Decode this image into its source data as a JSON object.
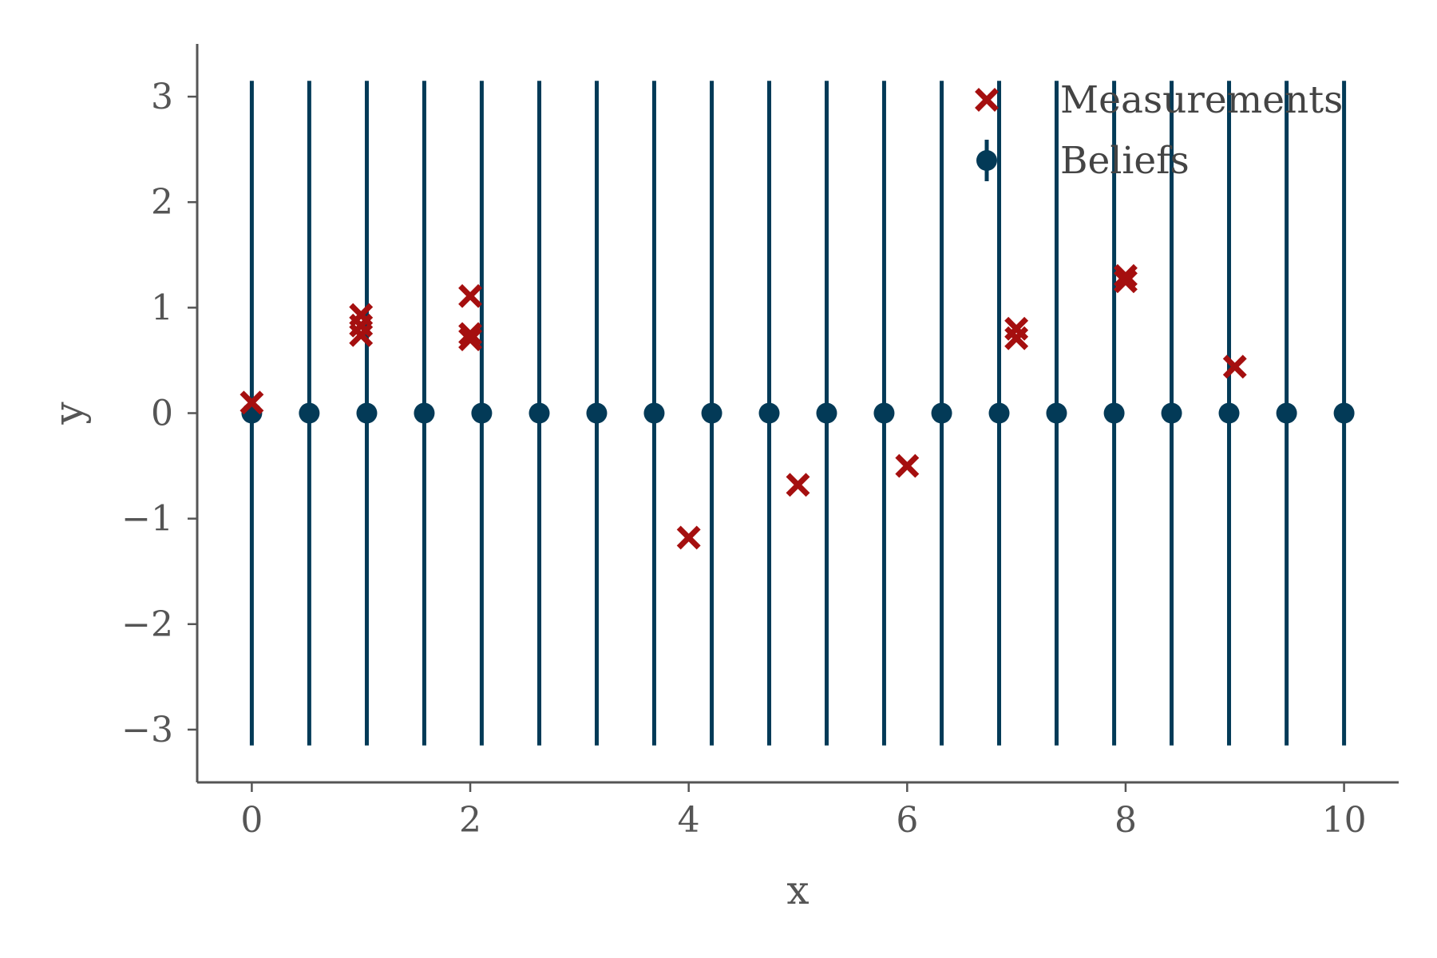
{
  "chart_data": {
    "type": "scatter",
    "title": "",
    "xlabel": "x",
    "ylabel": "y",
    "xlim": [
      -0.5,
      10.5
    ],
    "ylim": [
      -3.5,
      3.5
    ],
    "xticks": [
      0,
      2,
      4,
      6,
      8,
      10
    ],
    "yticks": [
      3,
      2,
      1,
      0,
      -1,
      -2,
      -3
    ],
    "xtick_labels": [
      "0",
      "2",
      "4",
      "6",
      "8",
      "10"
    ],
    "ytick_labels": [
      "3",
      "2",
      "1",
      "0",
      "−1",
      "−2",
      "−3"
    ],
    "grid": false,
    "legend_position": "top-right",
    "colors": {
      "measurements": "#a50f0f",
      "beliefs": "#033a57",
      "axis": "#555555"
    },
    "series": [
      {
        "name": "Measurements",
        "marker": "x",
        "points": [
          [
            0,
            0.1
          ],
          [
            1,
            0.93
          ],
          [
            1,
            0.83
          ],
          [
            1,
            0.74
          ],
          [
            2,
            1.11
          ],
          [
            2,
            0.75
          ],
          [
            2,
            0.7
          ],
          [
            4,
            -1.18
          ],
          [
            5,
            -0.68
          ],
          [
            6,
            -0.5
          ],
          [
            7,
            0.8
          ],
          [
            7,
            0.71
          ],
          [
            8,
            1.3
          ],
          [
            8,
            1.25
          ],
          [
            9,
            0.44
          ]
        ]
      },
      {
        "name": "Beliefs",
        "marker": "o",
        "x": [
          0,
          0.526,
          1.053,
          1.579,
          2.105,
          2.632,
          3.158,
          3.684,
          4.211,
          4.737,
          5.263,
          5.789,
          6.316,
          6.842,
          7.368,
          7.895,
          8.421,
          8.947,
          9.474,
          10
        ],
        "y": [
          0,
          0,
          0,
          0,
          0,
          0,
          0,
          0,
          0,
          0,
          0,
          0,
          0,
          0,
          0,
          0,
          0,
          0,
          0,
          0
        ],
        "yerr": [
          3.15,
          3.15,
          3.15,
          3.15,
          3.15,
          3.15,
          3.15,
          3.15,
          3.15,
          3.15,
          3.15,
          3.15,
          3.15,
          3.15,
          3.15,
          3.15,
          3.15,
          3.15,
          3.15,
          3.15
        ]
      }
    ]
  }
}
